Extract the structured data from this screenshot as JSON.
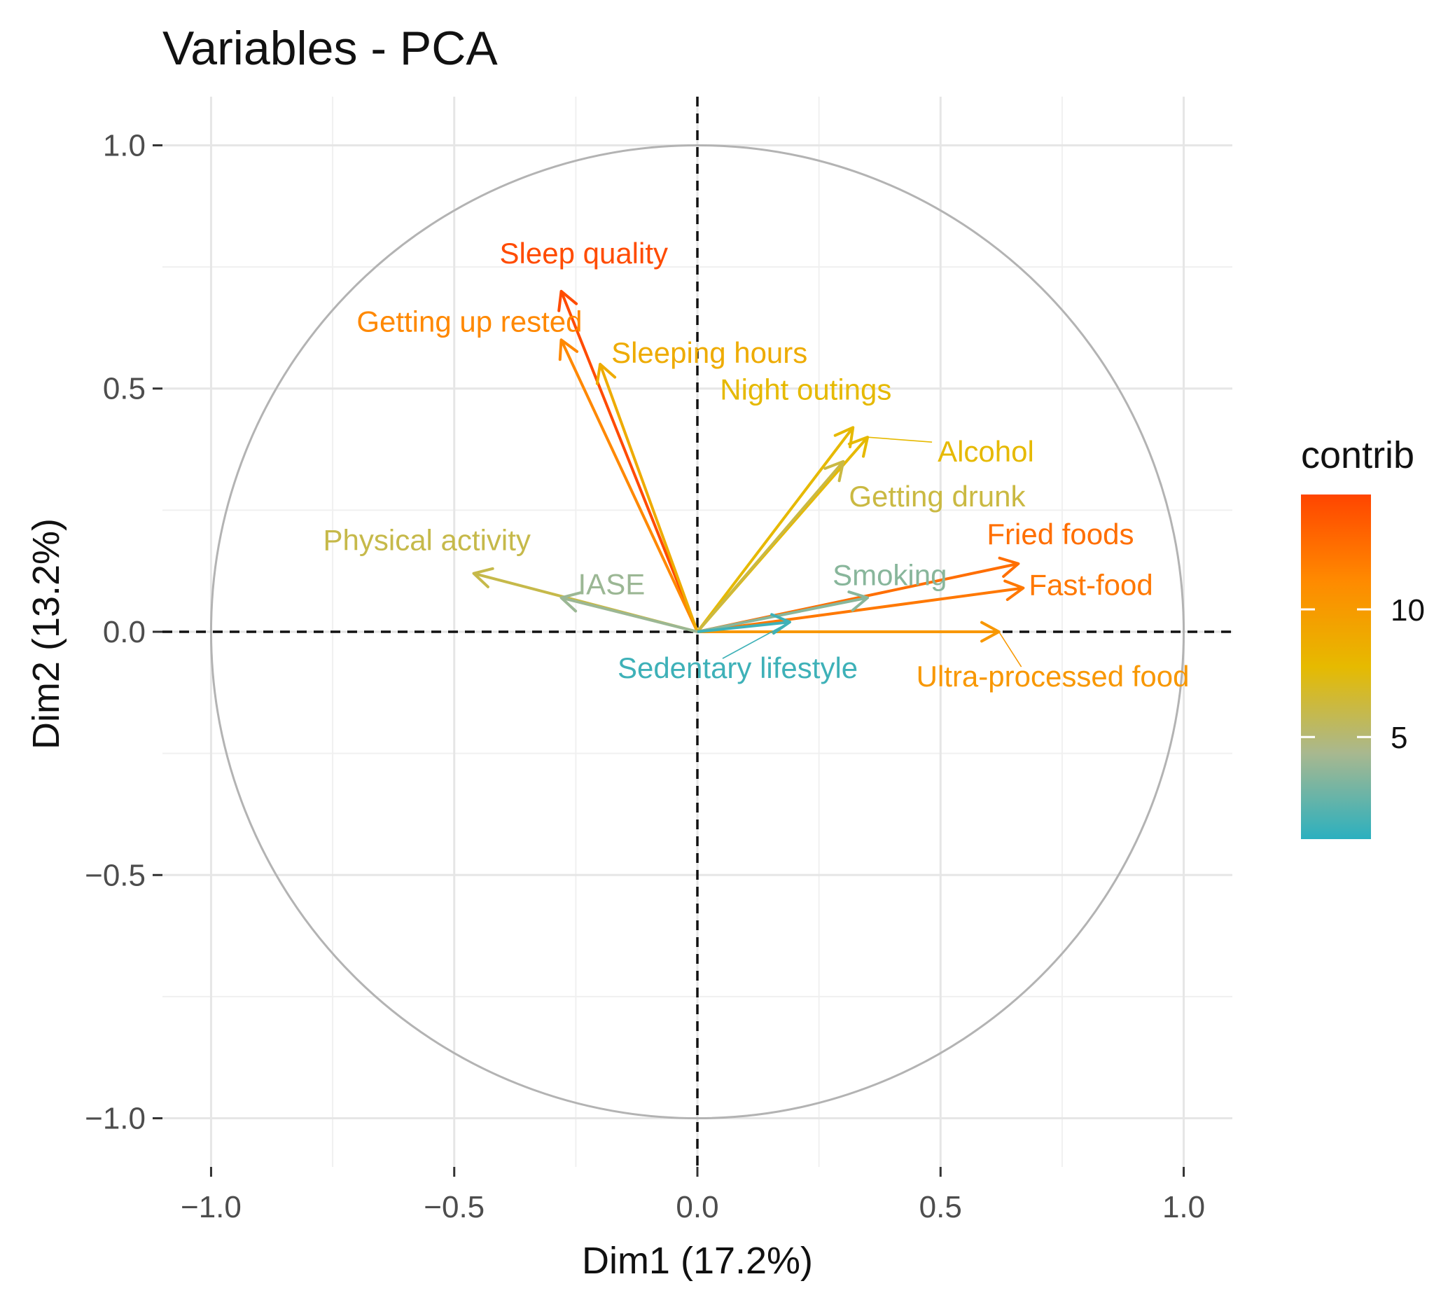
{
  "chart_data": {
    "type": "scatter",
    "subtype": "pca-variable-correlation-circle",
    "title": "Variables - PCA",
    "xlabel": "Dim1 (17.2%)",
    "ylabel": "Dim2 (13.2%)",
    "xlim": [
      -1.1,
      1.1
    ],
    "ylim": [
      -1.1,
      1.1
    ],
    "xticks": [
      -1.0,
      -0.5,
      0.0,
      0.5,
      1.0
    ],
    "yticks": [
      -1.0,
      -0.5,
      0.0,
      0.5,
      1.0
    ],
    "xtick_labels": [
      "−1.0",
      "−0.5",
      "0.0",
      "0.5",
      "1.0"
    ],
    "ytick_labels": [
      "−1.0",
      "−0.5",
      "0.0",
      "0.5",
      "1.0"
    ],
    "grid": true,
    "unit_circle": true,
    "reference_lines": {
      "x": 0,
      "y": 0,
      "style": "dashed"
    },
    "legend": {
      "title": "contrib",
      "position": "right",
      "range": [
        1,
        14.5
      ],
      "ticks": [
        5,
        10
      ],
      "tick_labels": [
        "5",
        "10"
      ],
      "gradient": [
        "#2BB0BF",
        "#A9B88F",
        "#E6BA00",
        "#FF8A00",
        "#FF4500"
      ]
    },
    "variables": [
      {
        "name": "Sleep quality",
        "x": -0.28,
        "y": 0.7,
        "contrib": 14.2
      },
      {
        "name": "Getting up rested",
        "x": -0.28,
        "y": 0.6,
        "contrib": 11.2
      },
      {
        "name": "Sleeping hours",
        "x": -0.2,
        "y": 0.55,
        "contrib": 8.8
      },
      {
        "name": "Night outings",
        "x": 0.32,
        "y": 0.42,
        "contrib": 7.8
      },
      {
        "name": "Alcohol",
        "x": 0.35,
        "y": 0.4,
        "contrib": 7.8
      },
      {
        "name": "Getting drunk",
        "x": 0.3,
        "y": 0.35,
        "contrib": 6.2
      },
      {
        "name": "Physical activity",
        "x": -0.46,
        "y": 0.12,
        "contrib": 6.0
      },
      {
        "name": "IASE",
        "x": -0.28,
        "y": 0.07,
        "contrib": 4.0
      },
      {
        "name": "Fried foods",
        "x": 0.66,
        "y": 0.14,
        "contrib": 12.5
      },
      {
        "name": "Fast-food",
        "x": 0.67,
        "y": 0.09,
        "contrib": 12.0
      },
      {
        "name": "Smoking",
        "x": 0.35,
        "y": 0.07,
        "contrib": 3.5
      },
      {
        "name": "Ultra-processed food",
        "x": 0.62,
        "y": 0.0,
        "contrib": 10.2
      },
      {
        "name": "Sedentary lifestyle",
        "x": 0.19,
        "y": 0.02,
        "contrib": 1.5
      }
    ]
  }
}
